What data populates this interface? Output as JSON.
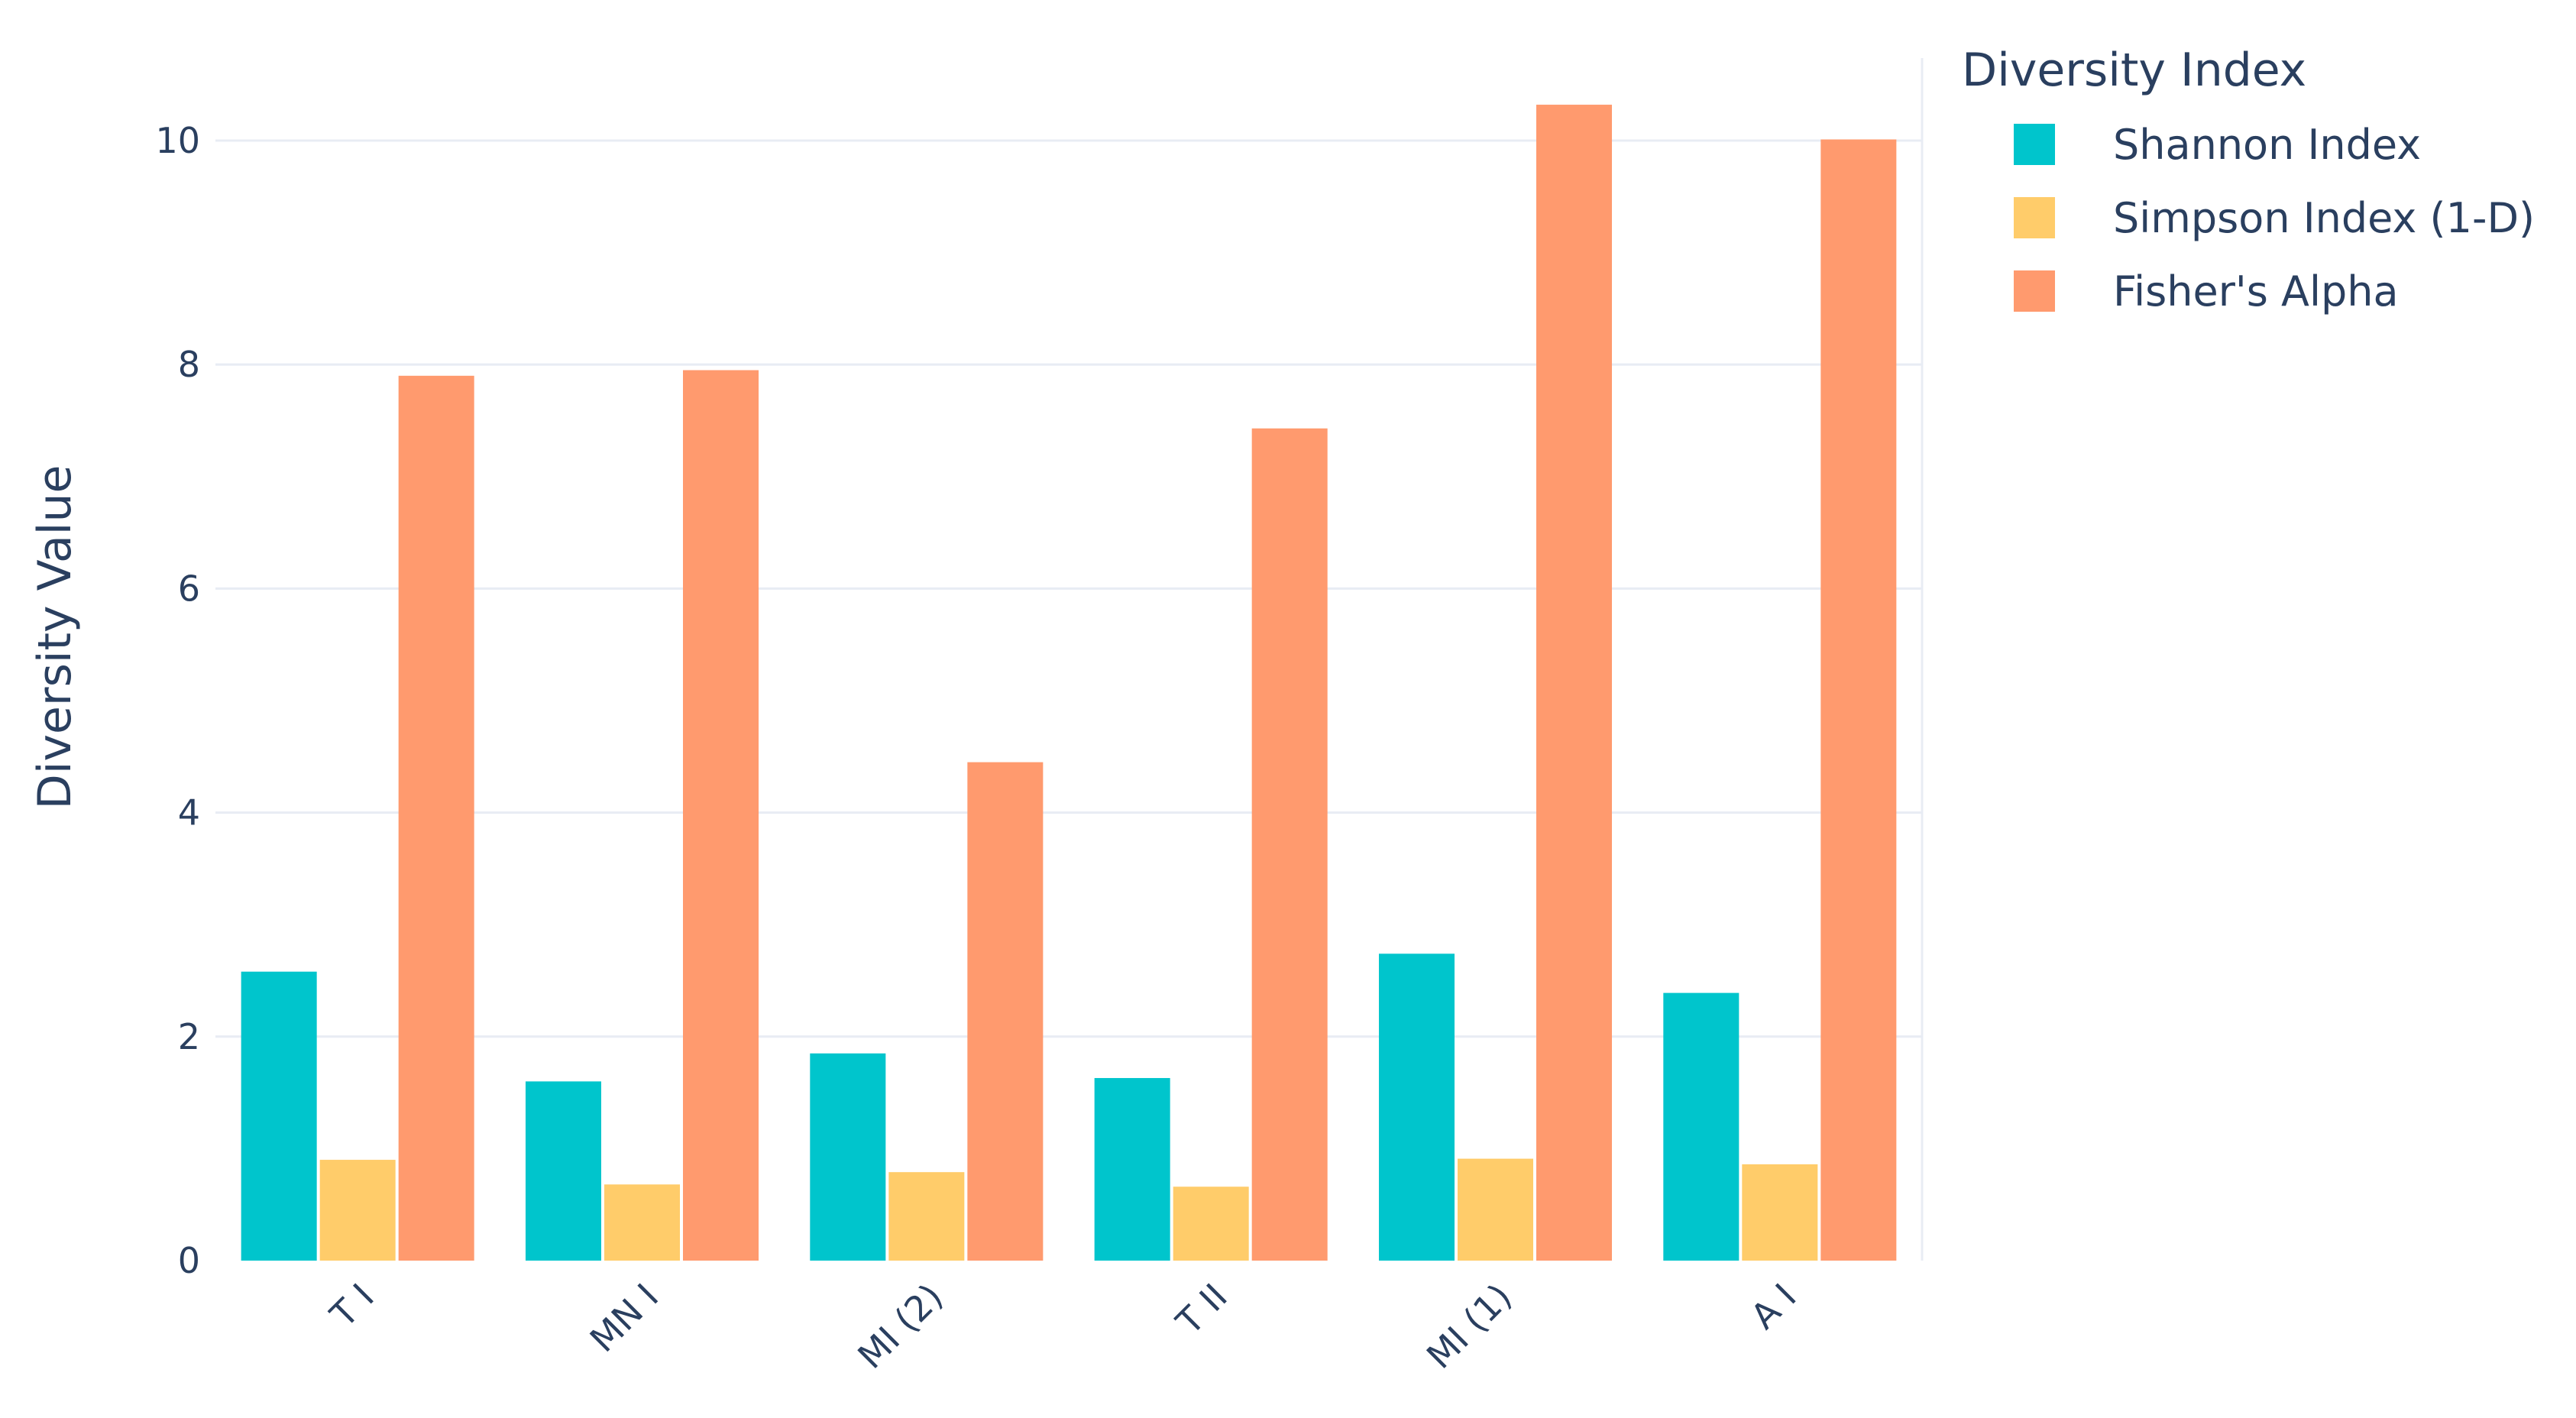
{
  "chart_data": {
    "type": "bar",
    "categories": [
      "T I",
      "MN I",
      "MI (2)",
      "T II",
      "MI (1)",
      "A I"
    ],
    "series": [
      {
        "name": "Shannon Index",
        "color": "#00c5cc",
        "values": [
          2.58,
          1.6,
          1.85,
          1.63,
          2.74,
          2.39
        ]
      },
      {
        "name": "Simpson Index (1-D)",
        "color": "#ffcc6a",
        "values": [
          0.9,
          0.68,
          0.79,
          0.66,
          0.91,
          0.86
        ]
      },
      {
        "name": "Fisher's Alpha",
        "color": "#ff9a6e",
        "values": [
          7.9,
          7.95,
          4.45,
          7.43,
          10.32,
          10.01
        ]
      }
    ],
    "xlabel": "",
    "ylabel": "Diversity Value",
    "ylim": [
      0,
      10.6
    ],
    "yticks": [
      0,
      2,
      4,
      6,
      8,
      10
    ],
    "grid": true,
    "legend": {
      "title": "Diversity Index",
      "placement": "top-right"
    },
    "title": ""
  }
}
